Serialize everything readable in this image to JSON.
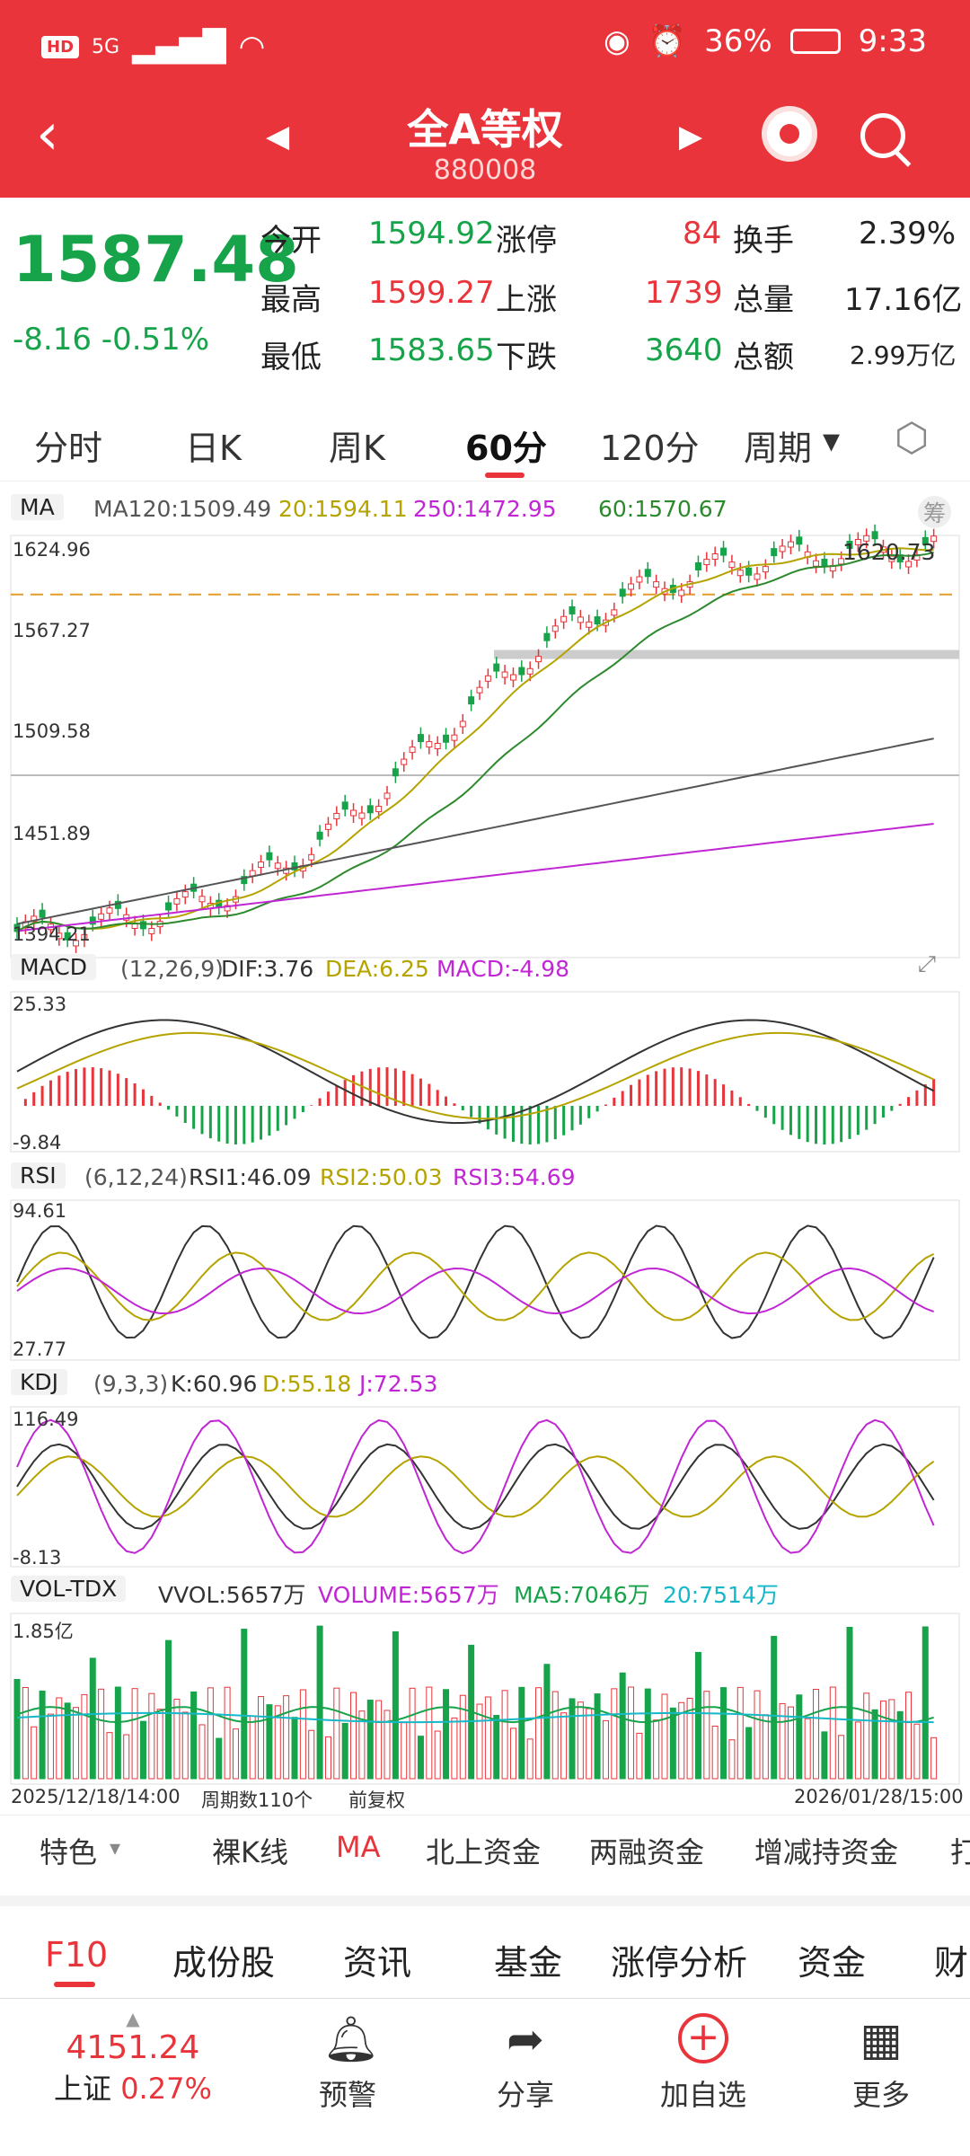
{
  "status": {
    "time": "9:33",
    "battery": "36%",
    "net": "HD",
    "signal": "5G"
  },
  "header": {
    "title": "全A等权",
    "code": "880008"
  },
  "quote": {
    "price": "1587.48",
    "change": "-8.16",
    "pct": "-0.51%",
    "rows": [
      {
        "l1": "今开",
        "v1": "1594.92",
        "l2": "涨停",
        "v2": "84",
        "l3": "换手",
        "v3": "2.39%"
      },
      {
        "l1": "最高",
        "v1": "1599.27",
        "l2": "上涨",
        "v2": "1739",
        "l3": "总量",
        "v3": "17.16亿"
      },
      {
        "l1": "最低",
        "v1": "1583.65",
        "l2": "下跌",
        "v2": "3640",
        "l3": "总额",
        "v3": "2.99万亿"
      }
    ]
  },
  "tabs": [
    "分时",
    "日K",
    "周K",
    "60分",
    "120分",
    "周期"
  ],
  "ma": {
    "sel": "MA",
    "ma120": "MA120:1509.49",
    "ma20": "20:1594.11",
    "ma250": "250:1472.95",
    "ma60": "60:1570.67",
    "y1": "1624.96",
    "y2": "1567.27",
    "y3": "1509.58",
    "y4": "1451.89",
    "y5": "1394.21",
    "hi": "1620.73",
    "chip": "筹"
  },
  "macd": {
    "sel": "MACD",
    "params": "(12,26,9)",
    "dif": "DIF:3.76",
    "dea": "DEA:6.25",
    "macd": "MACD:-4.98",
    "ymax": "25.33",
    "ymin": "-9.84"
  },
  "rsi": {
    "sel": "RSI",
    "params": "(6,12,24)",
    "r1": "RSI1:46.09",
    "r2": "RSI2:50.03",
    "r3": "RSI3:54.69",
    "ymax": "94.61",
    "ymin": "27.77"
  },
  "kdj": {
    "sel": "KDJ",
    "params": "(9,3,3)",
    "k": "K:60.96",
    "d": "D:55.18",
    "j": "J:72.53",
    "ymax": "116.49",
    "ymin": "-8.13"
  },
  "vol": {
    "sel": "VOL-TDX",
    "vvol": "VVOL:5657万",
    "volume": "VOLUME:5657万",
    "ma5": "MA5:7046万",
    "ma20": "20:7514万",
    "ymax": "1.85亿"
  },
  "footer": {
    "start": "2025/12/18/14:00",
    "count": "周期数110个",
    "adj": "前复权",
    "end": "2026/01/28/15:00"
  },
  "feature": [
    "特色",
    "裸K线",
    "MA",
    "北上资金",
    "两融资金",
    "增减持资金",
    "打"
  ],
  "f10": [
    "F10",
    "成份股",
    "资讯",
    "基金",
    "涨停分析",
    "资金",
    "财"
  ],
  "nav": {
    "index_val": "4151.24",
    "index_name": "上证",
    "index_pct": "0.27%",
    "items": [
      "预警",
      "分享",
      "加自选",
      "更多"
    ]
  },
  "colors": {
    "red": "#e8343a",
    "green": "#16a34a",
    "ma20": "#b5a300",
    "ma60": "#2c8a2c",
    "ma120": "#555555",
    "ma250": "#c026d3"
  }
}
